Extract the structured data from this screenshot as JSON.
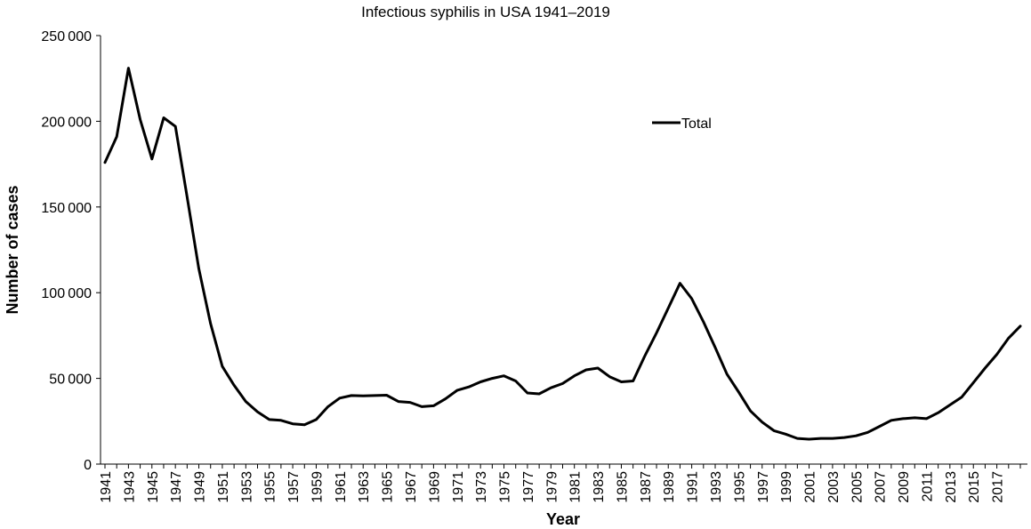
{
  "chart_data": {
    "type": "line",
    "title": "Infectious syphilis in USA 1941–2019",
    "xlabel": "Year",
    "ylabel": "Number of cases",
    "xlim": [
      1941,
      2019
    ],
    "ylim": [
      0,
      250000
    ],
    "y_ticks": [
      "0",
      "50 000",
      "100 000",
      "150 000",
      "200 000",
      "250 000"
    ],
    "x_tick_labels": [
      "1941",
      "1943",
      "1945",
      "1947",
      "1949",
      "1951",
      "1953",
      "1955",
      "1957",
      "1959",
      "1961",
      "1963",
      "1965",
      "1967",
      "1969",
      "1971",
      "1973",
      "1975",
      "1977",
      "1979",
      "1981",
      "1983",
      "1985",
      "1987",
      "1989",
      "1991",
      "1993",
      "1995",
      "1997",
      "1999",
      "2001",
      "2003",
      "2005",
      "2007",
      "2009",
      "2011",
      "2013",
      "2015",
      "2017"
    ],
    "grid": false,
    "legend_position": "top-right",
    "series": [
      {
        "name": "Total",
        "color": "#000000",
        "x": [
          1941,
          1942,
          1943,
          1944,
          1945,
          1946,
          1947,
          1948,
          1949,
          1950,
          1951,
          1952,
          1953,
          1954,
          1955,
          1956,
          1957,
          1958,
          1959,
          1960,
          1961,
          1962,
          1963,
          1964,
          1965,
          1966,
          1967,
          1968,
          1969,
          1970,
          1971,
          1972,
          1973,
          1974,
          1975,
          1976,
          1977,
          1978,
          1979,
          1980,
          1981,
          1982,
          1983,
          1984,
          1985,
          1986,
          1987,
          1988,
          1989,
          1990,
          1991,
          1992,
          1993,
          1994,
          1995,
          1996,
          1997,
          1998,
          1999,
          2000,
          2001,
          2002,
          2003,
          2004,
          2005,
          2006,
          2007,
          2008,
          2009,
          2010,
          2011,
          2012,
          2013,
          2014,
          2015,
          2016,
          2017,
          2018,
          2019
        ],
        "values": [
          176000,
          191000,
          231000,
          201000,
          178000,
          202000,
          197000,
          156000,
          114000,
          82000,
          57000,
          46000,
          36500,
          30500,
          26000,
          25500,
          23500,
          23000,
          26000,
          33500,
          38500,
          40000,
          39800,
          40000,
          40200,
          36500,
          36000,
          33500,
          34000,
          38000,
          43000,
          45000,
          48000,
          50000,
          51500,
          48500,
          41500,
          41000,
          44500,
          47000,
          51500,
          55000,
          56000,
          51000,
          48000,
          48500,
          63000,
          76500,
          91000,
          105500,
          96500,
          83000,
          68000,
          52500,
          42000,
          31000,
          24500,
          19500,
          17500,
          15000,
          14500,
          15000,
          15000,
          15500,
          16500,
          18500,
          22000,
          25500,
          26500,
          27000,
          26500,
          30000,
          34500,
          39000,
          47500,
          56000,
          64000,
          73500,
          80500
        ]
      }
    ]
  }
}
